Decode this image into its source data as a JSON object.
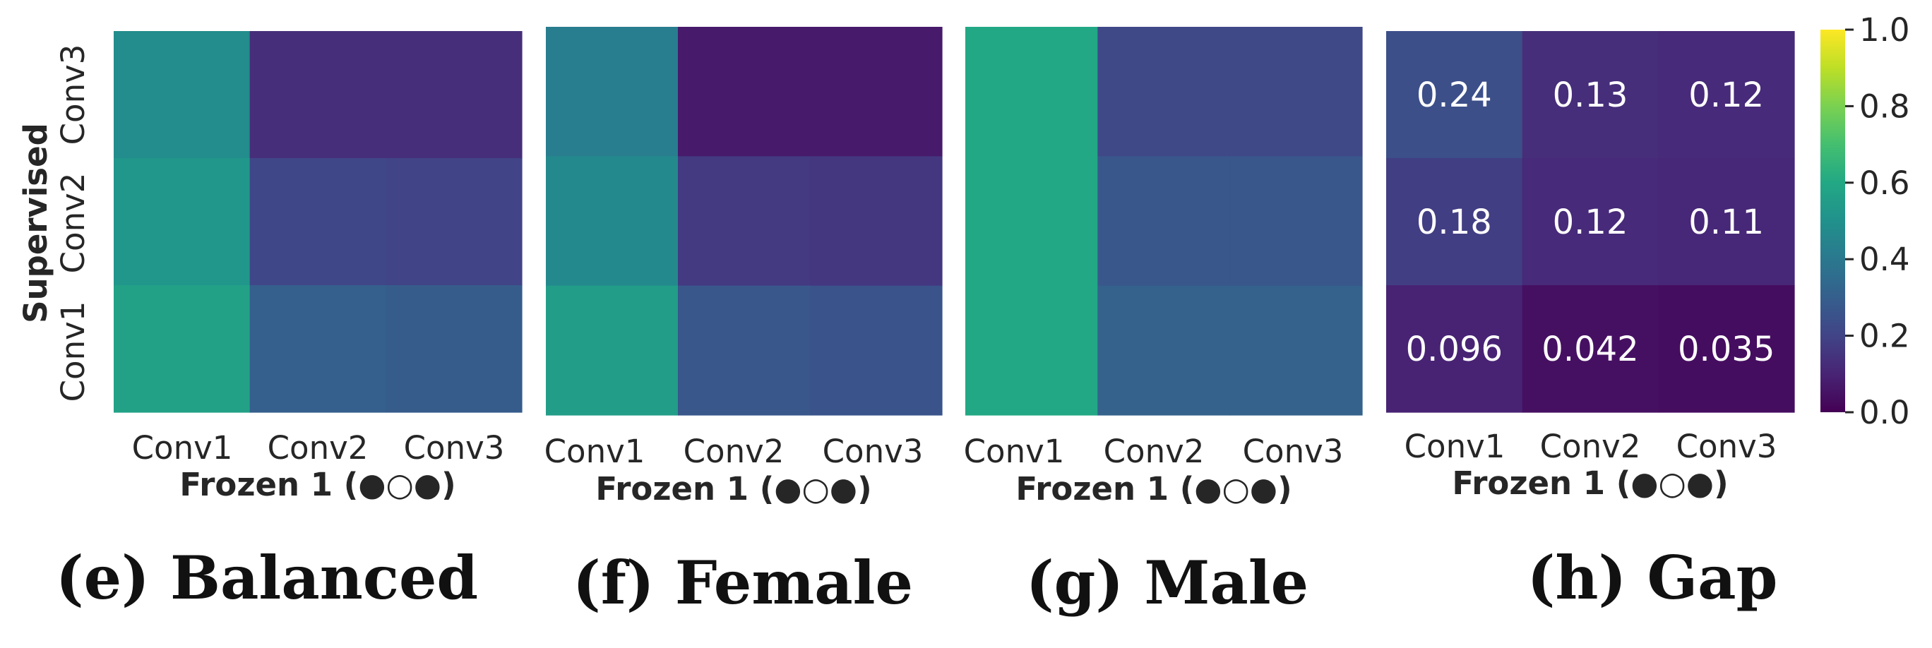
{
  "colormap": "viridis",
  "chart_data": [
    {
      "type": "heatmap",
      "caption": "(e) Balanced",
      "x_categories": [
        "Conv1",
        "Conv2",
        "Conv3"
      ],
      "y_categories": [
        "Conv3",
        "Conv2",
        "Conv1"
      ],
      "xlabel": "Frozen 1 (●○●)",
      "ylabel": "Supervised",
      "values": [
        [
          0.48,
          0.13,
          0.13
        ],
        [
          0.52,
          0.21,
          0.2
        ],
        [
          0.57,
          0.3,
          0.29
        ]
      ],
      "vmin": 0.0,
      "vmax": 1.0
    },
    {
      "type": "heatmap",
      "caption": "(f) Female",
      "x_categories": [
        "Conv1",
        "Conv2",
        "Conv3"
      ],
      "y_categories": [
        "Conv3",
        "Conv2",
        "Conv1"
      ],
      "xlabel": "Frozen 1 (●○●)",
      "values": [
        [
          0.42,
          0.07,
          0.07
        ],
        [
          0.47,
          0.17,
          0.16
        ],
        [
          0.55,
          0.27,
          0.26
        ]
      ],
      "vmin": 0.0,
      "vmax": 1.0
    },
    {
      "type": "heatmap",
      "caption": "(g) Male",
      "x_categories": [
        "Conv1",
        "Conv2",
        "Conv3"
      ],
      "y_categories": [
        "Conv3",
        "Conv2",
        "Conv1"
      ],
      "xlabel": "Frozen 1 (●○●)",
      "values": [
        [
          0.6,
          0.22,
          0.22
        ],
        [
          0.6,
          0.27,
          0.27
        ],
        [
          0.6,
          0.31,
          0.31
        ]
      ],
      "vmin": 0.0,
      "vmax": 1.0
    },
    {
      "type": "heatmap",
      "caption": "(h) Gap",
      "x_categories": [
        "Conv1",
        "Conv2",
        "Conv3"
      ],
      "y_categories": [
        "Conv3",
        "Conv2",
        "Conv1"
      ],
      "xlabel": "Frozen 1 (●○●)",
      "values": [
        [
          0.24,
          0.13,
          0.12
        ],
        [
          0.18,
          0.12,
          0.11
        ],
        [
          0.096,
          0.042,
          0.035
        ]
      ],
      "annotations": [
        [
          "0.24",
          "0.13",
          "0.12"
        ],
        [
          "0.18",
          "0.12",
          "0.11"
        ],
        [
          "0.096",
          "0.042",
          "0.035"
        ]
      ],
      "vmin": 0.0,
      "vmax": 1.0
    }
  ],
  "colorbar": {
    "ticks": [
      "0.0",
      "0.2",
      "0.4",
      "0.6",
      "0.8",
      "1.0"
    ],
    "tick_values": [
      0.0,
      0.2,
      0.4,
      0.6,
      0.8,
      1.0
    ],
    "vmin": 0.0,
    "vmax": 1.0
  }
}
